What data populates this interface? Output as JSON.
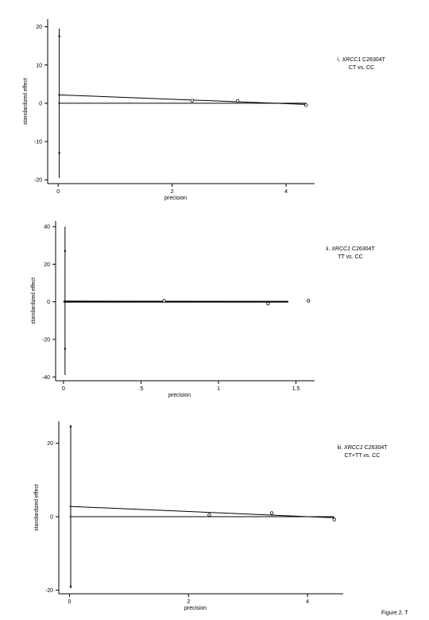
{
  "figure": {
    "caption": "Figure 2. T"
  },
  "chart_data": [
    {
      "type": "scatter",
      "id": "panel1",
      "annotation": {
        "prefix": "i. ",
        "gene": "XRCC1",
        "variant": " C26304T",
        "line2": "CT vs. CC"
      },
      "xlabel": "precision",
      "ylabel": "standardized effect",
      "xlim": [
        -0.1,
        4.5
      ],
      "ylim": [
        -21,
        22
      ],
      "xticks": [
        {
          "v": 0,
          "label": "0"
        },
        {
          "v": 2,
          "label": "2"
        },
        {
          "v": 4,
          "label": "4"
        }
      ],
      "yticks": [
        {
          "v": 20,
          "label": "20"
        },
        {
          "v": 10,
          "label": "10"
        },
        {
          "v": 0,
          "label": "0"
        },
        {
          "v": -10,
          "label": "-10"
        },
        {
          "v": -20,
          "label": "-20"
        }
      ],
      "ci_line": {
        "x": 0.02,
        "y": [
          -19.5,
          19.5
        ]
      },
      "ci_ticks": [
        17.5,
        -13
      ],
      "points": [
        {
          "x": 2.35,
          "y": 0.7
        },
        {
          "x": 3.15,
          "y": 0.6
        },
        {
          "x": 4.35,
          "y": -0.5
        }
      ],
      "reference_line": {
        "x": [
          0,
          4.35
        ],
        "y": 0
      },
      "regression_line": {
        "x": [
          0,
          4.35
        ],
        "y": [
          2.2,
          -0.3
        ]
      }
    },
    {
      "type": "scatter",
      "id": "panel2",
      "annotation": {
        "prefix": "ii. ",
        "gene": "XRCC1",
        "variant": " C26304T",
        "line2": "TT vs. CC"
      },
      "xlabel": "precision",
      "ylabel": "standardized effect",
      "xlim": [
        -0.02,
        1.62
      ],
      "ylim": [
        -42,
        43
      ],
      "xticks": [
        {
          "v": 0,
          "label": "0"
        },
        {
          "v": 0.5,
          "label": ".5"
        },
        {
          "v": 1,
          "label": "1"
        },
        {
          "v": 1.5,
          "label": "1.5"
        }
      ],
      "yticks": [
        {
          "v": 40,
          "label": "40"
        },
        {
          "v": 20,
          "label": "20"
        },
        {
          "v": 0,
          "label": "0"
        },
        {
          "v": -20,
          "label": "-20"
        },
        {
          "v": -40,
          "label": "-40"
        }
      ],
      "ci_line": {
        "x": 0.01,
        "y": [
          -39,
          40
        ]
      },
      "ci_ticks": [
        27,
        -25
      ],
      "points": [
        {
          "x": 0.65,
          "y": 0.5
        },
        {
          "x": 1.32,
          "y": -1.0
        },
        {
          "x": 1.58,
          "y": 0.5
        }
      ],
      "reference_line": {
        "x": [
          0,
          1.45
        ],
        "y": 0
      },
      "regression_line": {
        "x": [
          0,
          1.45
        ],
        "y": [
          0.4,
          0.2
        ]
      }
    },
    {
      "type": "scatter",
      "id": "panel3",
      "annotation": {
        "prefix": "iii. ",
        "gene": "XRCC1",
        "variant": " C26304T",
        "line2": "CT+TT vs. CC"
      },
      "xlabel": "precision",
      "ylabel": "standardized effect",
      "xlim": [
        -0.1,
        4.6
      ],
      "ylim": [
        -21,
        26
      ],
      "xticks": [
        {
          "v": 0,
          "label": "0"
        },
        {
          "v": 2,
          "label": "2"
        },
        {
          "v": 4,
          "label": "4"
        }
      ],
      "yticks": [
        {
          "v": 20,
          "label": "20"
        },
        {
          "v": 0,
          "label": "0"
        },
        {
          "v": -20,
          "label": "-20"
        }
      ],
      "ci_line": {
        "x": 0.02,
        "y": [
          -19.5,
          25
        ]
      },
      "ci_ticks": [
        24.5,
        -19
      ],
      "points": [
        {
          "x": 2.35,
          "y": 0.5
        },
        {
          "x": 3.4,
          "y": 1.0
        },
        {
          "x": 4.45,
          "y": -0.8
        }
      ],
      "reference_line": {
        "x": [
          0,
          4.45
        ],
        "y": 0
      },
      "regression_line": {
        "x": [
          0,
          4.45
        ],
        "y": [
          2.8,
          -0.3
        ]
      }
    }
  ]
}
